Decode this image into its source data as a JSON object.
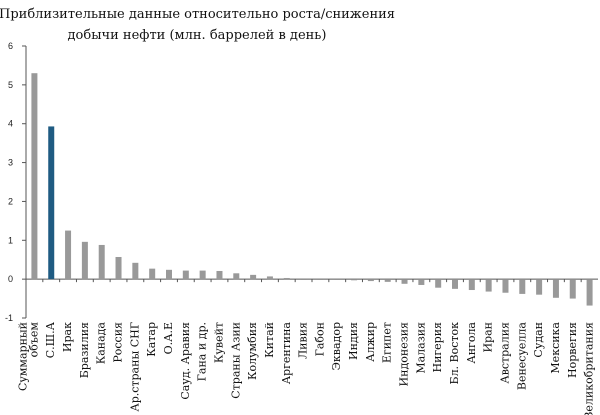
{
  "chart_data": {
    "type": "bar",
    "title_lines": [
      "Приблизительные данные относительно роста/снижения",
      "добычи нефти (млн. баррелей в день)"
    ],
    "xlabel": "",
    "ylabel": "",
    "ylim": [
      -1,
      6
    ],
    "yticks": [
      "-1",
      "0",
      "1",
      "2",
      "3",
      "4",
      "5",
      "6"
    ],
    "grid": false,
    "colors": {
      "default": "#999999",
      "highlight": "#1f5b82"
    },
    "categories": [
      [
        "Суммарный",
        "объем"
      ],
      "С.Ш.А",
      "Ирак",
      "Бразилия",
      "Канада",
      "Россия",
      "Ар.страны СНГ",
      "Катар",
      "О.А.Е",
      "Сауд. Аравия",
      "Гана и др.",
      "Кувейт",
      "Страны Азии",
      "Колумбия",
      "Китай",
      "Аргентина",
      "Ливия",
      "Габон",
      "Эквадор",
      "Индия",
      "Алжир",
      "Египет",
      "Индонезия",
      "Малазия",
      "Нигерия",
      "Бл. Восток",
      "Ангола",
      "Иран",
      "Австралия",
      "Венесуелла",
      "Судан",
      "Мексика",
      "Норвегия",
      "Великобритания"
    ],
    "values": [
      5.3,
      3.93,
      1.25,
      0.96,
      0.88,
      0.57,
      0.42,
      0.27,
      0.24,
      0.22,
      0.22,
      0.21,
      0.15,
      0.11,
      0.07,
      0.03,
      -0.01,
      -0.01,
      -0.02,
      -0.03,
      -0.05,
      -0.07,
      -0.12,
      -0.15,
      -0.22,
      -0.25,
      -0.28,
      -0.32,
      -0.35,
      -0.38,
      -0.4,
      -0.48,
      -0.5,
      -0.68
    ],
    "highlight_index": 1
  }
}
